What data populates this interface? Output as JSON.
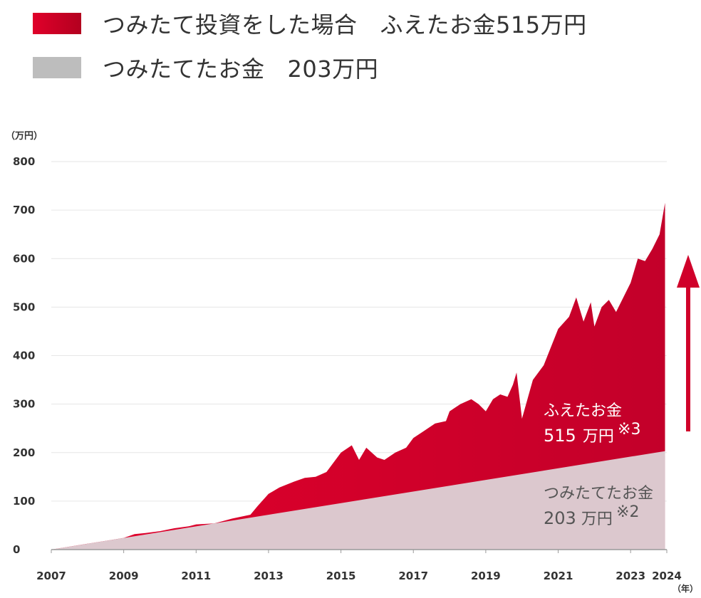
{
  "legend": {
    "investment_label": "つみたて投資をした場合",
    "investment_value_label": "ふえたお金515万円",
    "savings_label": "つみたてたお金",
    "savings_value_label": "203万円"
  },
  "axis": {
    "y_unit": "（万円）",
    "x_unit": "（年）"
  },
  "annotations": {
    "gain_title": "ふえたお金",
    "gain_value": "515",
    "gain_unit": "万円",
    "gain_note": "※3",
    "principal_title": "つみたてたお金",
    "principal_value": "203",
    "principal_unit": "万円",
    "principal_note": "※2"
  },
  "colors": {
    "investment": "#d0002a",
    "savings": "#dcc8ce",
    "arrow": "#d0002a",
    "grid": "#e6e6e6"
  },
  "chart_data": {
    "type": "area",
    "ylim": [
      0,
      800
    ],
    "yticks": [
      0,
      100,
      200,
      300,
      400,
      500,
      600,
      700,
      800
    ],
    "xlim": [
      2007,
      2024
    ],
    "xticks": [
      2007,
      2009,
      2011,
      2013,
      2015,
      2017,
      2019,
      2021,
      2023,
      2024
    ],
    "series": [
      {
        "name": "つみたて投資をした場合",
        "x": [
          2007,
          2007.5,
          2008,
          2008.5,
          2009,
          2009.3,
          2009.6,
          2010,
          2010.4,
          2010.8,
          2011,
          2011.5,
          2012,
          2012.5,
          2012.7,
          2013,
          2013.3,
          2013.7,
          2014,
          2014.3,
          2014.6,
          2015,
          2015.3,
          2015.5,
          2015.7,
          2016,
          2016.2,
          2016.5,
          2016.8,
          2017,
          2017.3,
          2017.6,
          2017.9,
          2018,
          2018.3,
          2018.6,
          2018.8,
          2019,
          2019.2,
          2019.4,
          2019.6,
          2019.75,
          2019.85,
          2020,
          2020.3,
          2020.6,
          2021,
          2021.3,
          2021.5,
          2021.7,
          2021.9,
          2022,
          2022.2,
          2022.4,
          2022.6,
          2022.8,
          2023,
          2023.2,
          2023.4,
          2023.6,
          2023.8,
          2023.95
        ],
        "values": [
          0,
          6,
          12,
          18,
          24,
          32,
          34,
          38,
          44,
          48,
          52,
          54,
          64,
          72,
          90,
          115,
          128,
          140,
          148,
          150,
          160,
          200,
          215,
          185,
          210,
          190,
          185,
          200,
          210,
          230,
          245,
          260,
          265,
          285,
          300,
          310,
          300,
          285,
          310,
          320,
          315,
          340,
          365,
          270,
          350,
          380,
          455,
          480,
          520,
          470,
          510,
          460,
          500,
          515,
          490,
          520,
          550,
          600,
          595,
          620,
          650,
          715
        ]
      },
      {
        "name": "つみたてたお金",
        "x": [
          2007,
          2023.95
        ],
        "values": [
          0,
          203
        ]
      }
    ]
  }
}
